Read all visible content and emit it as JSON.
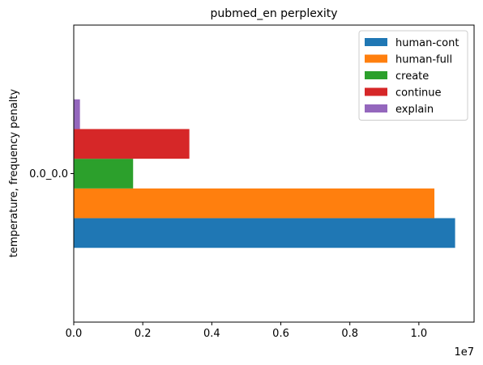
{
  "chart_data": {
    "type": "bar",
    "orientation": "horizontal",
    "title": "pubmed_en perplexity",
    "xlabel": "",
    "ylabel": "temperature, frequency penalty",
    "x_offset_text": "1e7",
    "categories": [
      "0.0_0.0"
    ],
    "series": [
      {
        "name": "human-cont",
        "color": "#1f77b4",
        "values": [
          11050000
        ]
      },
      {
        "name": "human-full",
        "color": "#ff7f0e",
        "values": [
          10450000
        ]
      },
      {
        "name": "create",
        "color": "#2ca02c",
        "values": [
          1720000
        ]
      },
      {
        "name": "continue",
        "color": "#d62728",
        "values": [
          3350000
        ]
      },
      {
        "name": "explain",
        "color": "#9467bd",
        "values": [
          180000
        ]
      }
    ],
    "xlim": [
      0,
      11600000
    ],
    "xticks": [
      0,
      2000000,
      4000000,
      6000000,
      8000000,
      10000000
    ],
    "xtick_labels": [
      "0.0",
      "0.2",
      "0.4",
      "0.6",
      "0.8",
      "1.0"
    ],
    "legend_position": "top-right",
    "grid": false
  }
}
